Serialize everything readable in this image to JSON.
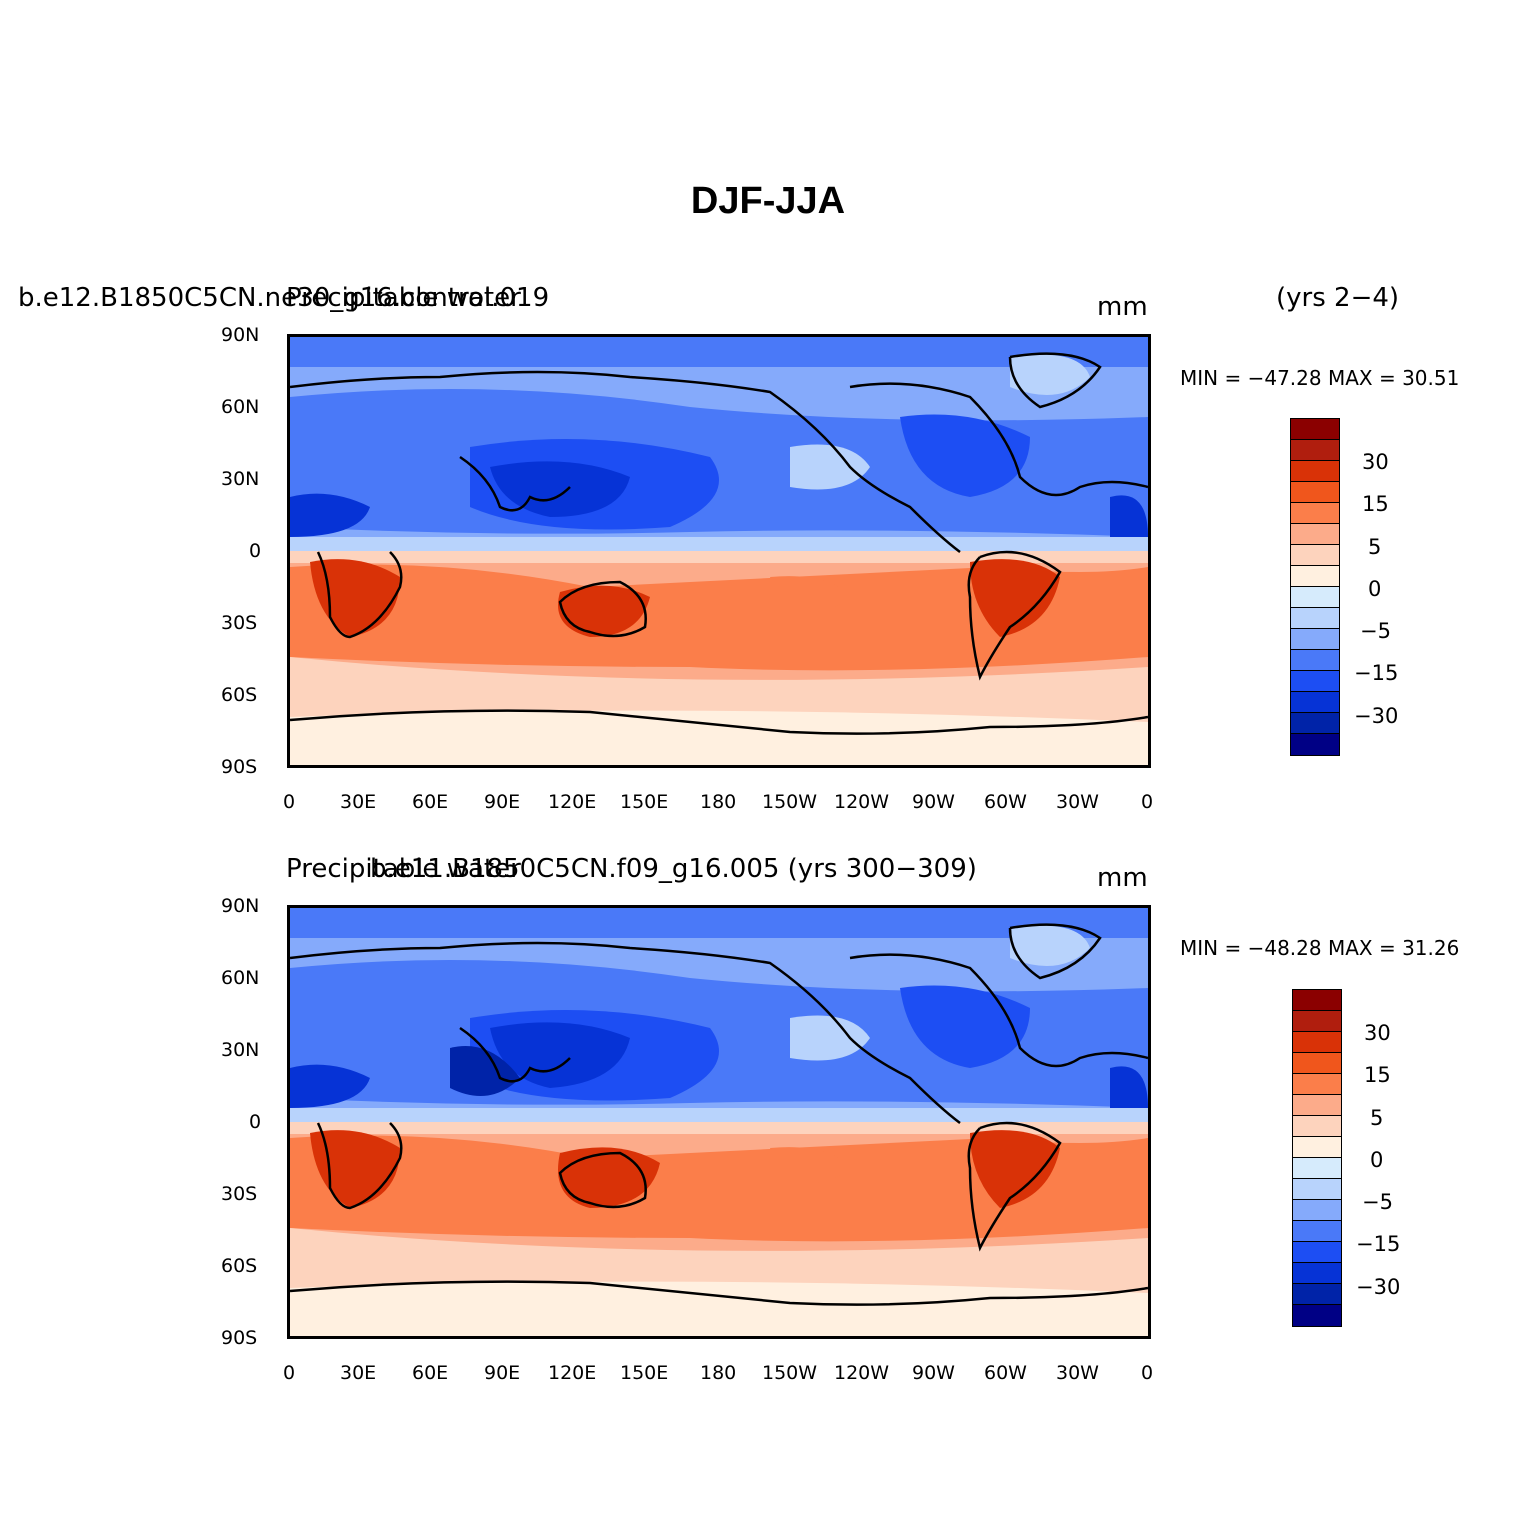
{
  "title": "DJF-JJA",
  "panels": [
    {
      "case_name": "b.e12.B1850C5CN.ne30_g16.control.019",
      "variable": "Precipitable water",
      "units": "mm",
      "years": "(yrs 2−4)",
      "minmax": "MIN = −47.28 MAX =  30.51"
    },
    {
      "case_name": "b.e11.B1850C5CN.f09_g16.005 (yrs 300−309)",
      "variable": "Precipitable water",
      "units": "mm",
      "years": "",
      "minmax": "MIN = −48.28 MAX =  31.26"
    }
  ],
  "axes": {
    "lat_labels": [
      "90N",
      "60N",
      "30N",
      "0",
      "30S",
      "60S",
      "90S"
    ],
    "lon_labels": [
      "0",
      "30E",
      "60E",
      "90E",
      "120E",
      "150E",
      "180",
      "150W",
      "120W",
      "90W",
      "60W",
      "30W",
      "0"
    ]
  },
  "colorbar": {
    "colors": [
      "#8b0000",
      "#b01e0e",
      "#d93207",
      "#f0561c",
      "#fb7e4a",
      "#fcab8a",
      "#fdd3bd",
      "#fff0e0",
      "#d6ebfc",
      "#b8d3fc",
      "#85aafb",
      "#4a79f8",
      "#1d4ef3",
      "#0633d6",
      "#0023a8",
      "#000085"
    ],
    "labels": [
      "30",
      "15",
      "5",
      "0",
      "−5",
      "−15",
      "−30"
    ]
  },
  "chart_data": {
    "type": "heatmap",
    "title": "DJF-JJA",
    "variable": "Precipitable water",
    "units": "mm",
    "levels": [
      -40,
      -30,
      -20,
      -15,
      -10,
      -5,
      -2,
      0,
      2,
      5,
      10,
      15,
      20,
      30,
      40
    ],
    "panels": [
      {
        "case": "b.e12.B1850C5CN.ne30_g16.control.019",
        "years": "yrs 2-4",
        "min": -47.28,
        "max": 30.51
      },
      {
        "case": "b.e11.B1850C5CN.f09_g16.005",
        "years": "yrs 300-309",
        "min": -48.28,
        "max": 31.26
      }
    ],
    "x_range": [
      "0",
      "0"
    ],
    "y_range": [
      "90S",
      "90N"
    ]
  }
}
